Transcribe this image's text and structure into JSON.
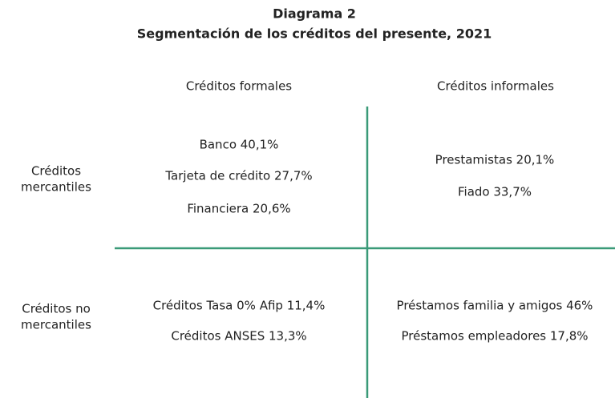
{
  "header": {
    "title": "Diagrama 2",
    "subtitle": "Segmentación de los créditos del presente, 2021"
  },
  "columns": [
    "Créditos formales",
    "Créditos informales"
  ],
  "rows": [
    [
      "Créditos",
      "mercantiles"
    ],
    [
      "Créditos no",
      "mercantiles"
    ]
  ],
  "cells": [
    [
      [
        "Banco 40,1%",
        "Tarjeta de crédito 27,7%",
        "Financiera 20,6%"
      ],
      [
        "Prestamistas 20,1%",
        "Fiado 33,7%"
      ]
    ],
    [
      [
        "Créditos Tasa 0% Afip 11,4%",
        "Créditos ANSES 13,3%"
      ],
      [
        "Préstamos familia y amigos 46%",
        "Préstamos empleadores 17,8%"
      ]
    ]
  ]
}
